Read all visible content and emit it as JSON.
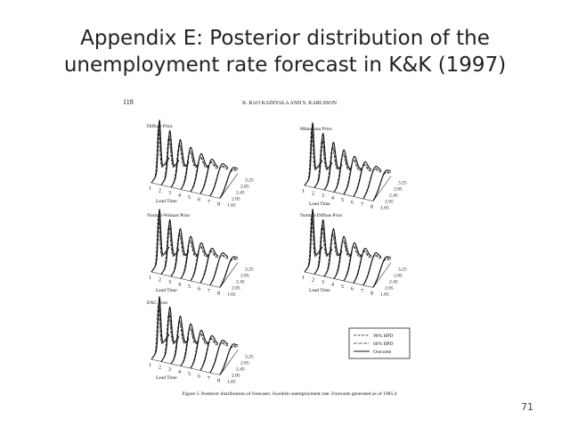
{
  "slide": {
    "title_lines": [
      "Appendix E: Posterior distribution of the",
      "unemployment rate forecast in K&K (1997)"
    ],
    "page_number": "71"
  },
  "figure": {
    "page": "118",
    "running_head": "K. RAO KADIYALA AND S. KARLSSON",
    "panels": [
      {
        "title": "Diffuse Prior"
      },
      {
        "title": "Minnesota Prior"
      },
      {
        "title": "Normal-Wishart Prior"
      },
      {
        "title": "Normal-Diffuse Prior"
      },
      {
        "title": "ENC Prior"
      }
    ],
    "lead_axis_label": "Lead Time",
    "lead_ticks": [
      1,
      2,
      3,
      4,
      5,
      6,
      7,
      8
    ],
    "rate_ticks": [
      1.65,
      2.05,
      2.45,
      2.85,
      3.25
    ],
    "legend": [
      "90% HPD",
      "60% HPD",
      "Outcome"
    ],
    "caption": "Figure 5. Posterior distributions of forecasts: Swedish unemployment rate. Forecasts generated as of 1985:4"
  }
}
